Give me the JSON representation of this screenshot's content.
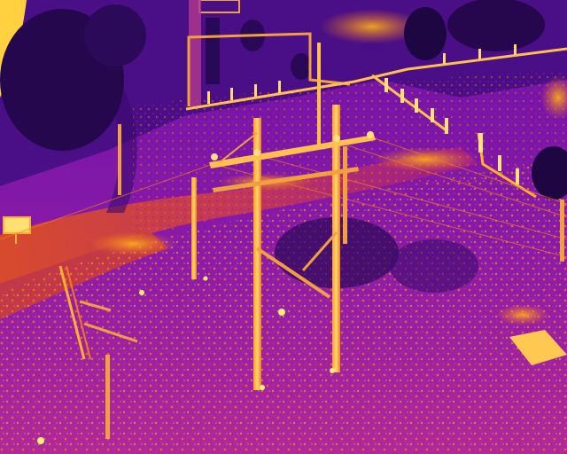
{
  "image": {
    "kind": "thermal-aerial-photo",
    "palette": [
      "#14052e",
      "#3a0a6e",
      "#6a12a8",
      "#a4189c",
      "#d8306a",
      "#f26a1e",
      "#ffb21a",
      "#fff07a"
    ],
    "objects": [
      "transmission-pole",
      "crossarm",
      "fence",
      "road",
      "tree",
      "building",
      "sign",
      "power-line"
    ]
  }
}
